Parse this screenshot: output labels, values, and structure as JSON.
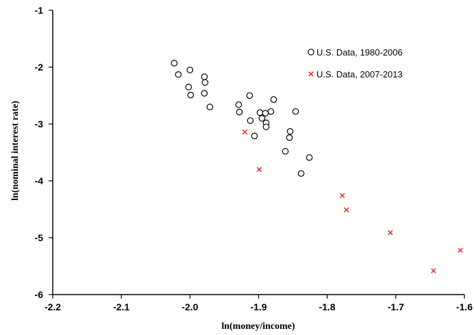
{
  "chart_data": {
    "type": "scatter",
    "xlabel": "ln(money/income)",
    "ylabel": "ln(nominal interest rate)",
    "xlim": [
      -2.2,
      -1.6
    ],
    "ylim": [
      -6,
      -1
    ],
    "xticks": [
      -2.2,
      -2.1,
      -2.0,
      -1.9,
      -1.8,
      -1.7,
      -1.6
    ],
    "xtick_labels": [
      "-2.2",
      "-2.1",
      "-2.0",
      "-1.9",
      "-1.8",
      "-1.7",
      "-1.6"
    ],
    "yticks": [
      -6,
      -5,
      -4,
      -3,
      -2,
      -1
    ],
    "ytick_labels": [
      "-6",
      "-5",
      "-4",
      "-3",
      "-2",
      "-1"
    ],
    "grid": false,
    "legend_position": "top-right",
    "series": [
      {
        "name": "U.S. Data, 1980-2006",
        "marker": "circle",
        "color": "#000000",
        "points": [
          [
            -2.023,
            -1.93
          ],
          [
            -2.017,
            -2.13
          ],
          [
            -2.0,
            -2.05
          ],
          [
            -1.979,
            -2.17
          ],
          [
            -1.978,
            -2.27
          ],
          [
            -2.002,
            -2.35
          ],
          [
            -1.999,
            -2.49
          ],
          [
            -1.979,
            -2.46
          ],
          [
            -1.971,
            -2.7
          ],
          [
            -1.913,
            -2.5
          ],
          [
            -1.929,
            -2.66
          ],
          [
            -1.928,
            -2.79
          ],
          [
            -1.878,
            -2.57
          ],
          [
            -1.898,
            -2.8
          ],
          [
            -1.89,
            -2.81
          ],
          [
            -1.882,
            -2.78
          ],
          [
            -1.846,
            -2.78
          ],
          [
            -1.895,
            -2.9
          ],
          [
            -1.912,
            -2.94
          ],
          [
            -1.889,
            -2.98
          ],
          [
            -1.889,
            -3.05
          ],
          [
            -1.854,
            -3.13
          ],
          [
            -1.906,
            -3.21
          ],
          [
            -1.855,
            -3.24
          ],
          [
            -1.861,
            -3.48
          ],
          [
            -1.826,
            -3.59
          ],
          [
            -1.838,
            -3.87
          ]
        ]
      },
      {
        "name": "U.S. Data, 2007-2013",
        "marker": "x",
        "color": "#e0201b",
        "points": [
          [
            -1.92,
            -3.14
          ],
          [
            -1.899,
            -3.8
          ],
          [
            -1.778,
            -4.26
          ],
          [
            -1.772,
            -4.51
          ],
          [
            -1.708,
            -4.91
          ],
          [
            -1.645,
            -5.58
          ],
          [
            -1.606,
            -5.22
          ]
        ]
      }
    ]
  }
}
